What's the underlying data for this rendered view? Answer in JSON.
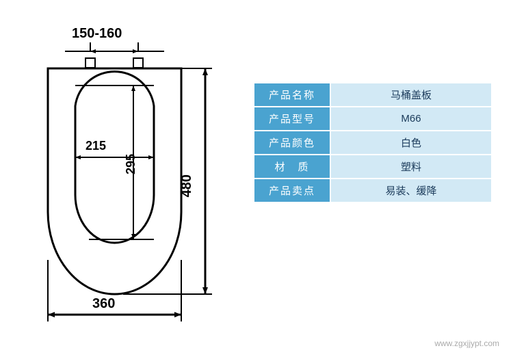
{
  "diagram": {
    "dims": {
      "top_mount": "150-160",
      "inner_width": "215",
      "inner_height": "295",
      "outer_height": "480",
      "outer_width": "360"
    },
    "colors": {
      "stroke": "#000000",
      "bg": "#ffffff"
    }
  },
  "table": {
    "label_bg": "#4aa3d0",
    "value_bg": "#d2e9f5",
    "label_color": "#ffffff",
    "value_color": "#1a3a5a",
    "rows": [
      {
        "label": "产品名称",
        "value": "马桶盖板"
      },
      {
        "label": "产品型号",
        "value": "M66"
      },
      {
        "label": "产品颜色",
        "value": "白色"
      },
      {
        "label": "材　质",
        "value": "塑料"
      },
      {
        "label": "产品卖点",
        "value": "易装、缓降"
      }
    ]
  },
  "watermark": "www.zgxjjypt.com"
}
